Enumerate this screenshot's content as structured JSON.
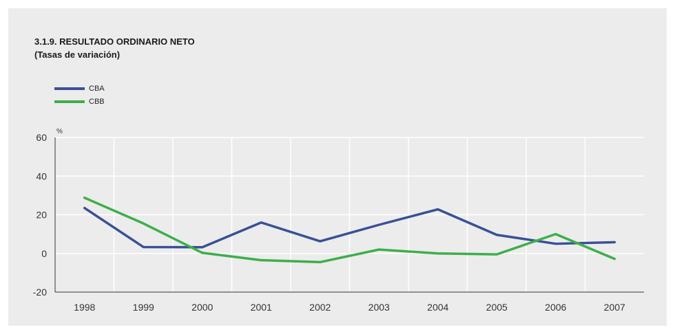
{
  "chart_data": {
    "type": "line",
    "title": "3.1.9. RESULTADO ORDINARIO NETO",
    "subtitle": "(Tasas de variación)",
    "ylabel": "%",
    "xlabel": "",
    "x": [
      "1998",
      "1999",
      "2000",
      "2001",
      "2002",
      "2003",
      "2004",
      "2005",
      "2006",
      "2007"
    ],
    "series": [
      {
        "name": "CBA",
        "color": "#3a5095",
        "values": [
          23.5,
          3.3,
          3.2,
          16.0,
          6.3,
          14.8,
          22.8,
          9.6,
          5.0,
          5.8
        ]
      },
      {
        "name": "CBB",
        "color": "#3caf4a",
        "values": [
          28.8,
          15.5,
          0.3,
          -3.5,
          -4.5,
          2.0,
          0.0,
          -0.5,
          10.0,
          -2.8
        ]
      }
    ],
    "ylim": [
      -20,
      60
    ],
    "yticks": [
      -20,
      0,
      20,
      40,
      60
    ],
    "grid": true,
    "legend_position": "top-left"
  }
}
